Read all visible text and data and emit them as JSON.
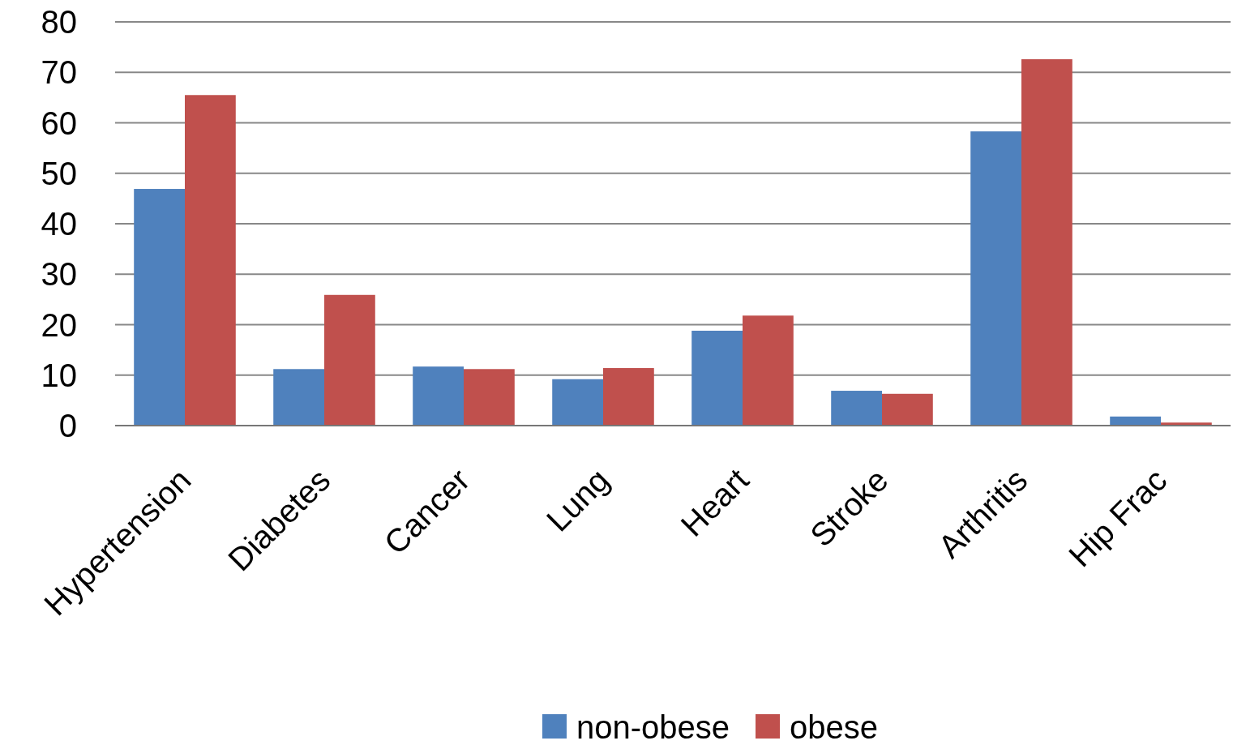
{
  "chart_data": {
    "type": "bar",
    "categories": [
      "Hypertension",
      "Diabetes",
      "Cancer",
      "Lung",
      "Heart",
      "Stroke",
      "Arthritis",
      "Hip Frac"
    ],
    "series": [
      {
        "name": "non-obese",
        "color": "#4f81bd",
        "values": [
          46.9,
          11.2,
          11.7,
          9.2,
          18.8,
          6.9,
          58.3,
          1.8
        ]
      },
      {
        "name": "obese",
        "color": "#c0504d",
        "values": [
          65.5,
          25.9,
          11.2,
          11.4,
          21.8,
          6.3,
          72.6,
          0.6
        ]
      }
    ],
    "ylim": [
      0,
      80
    ],
    "yticks": [
      0,
      10,
      20,
      30,
      40,
      50,
      60,
      70,
      80
    ],
    "grid": "y",
    "legend": "bottom"
  }
}
